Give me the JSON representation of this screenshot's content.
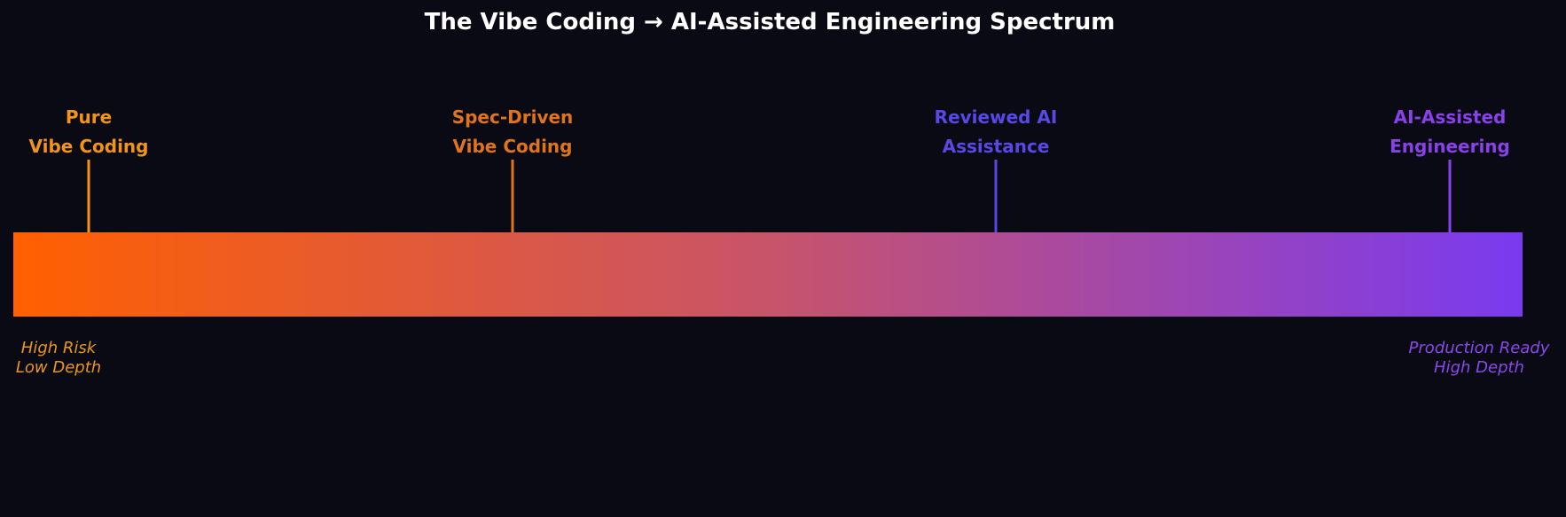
{
  "title": "The Vibe Coding → AI-Assisted Engineering Spectrum",
  "markers": [
    {
      "line1": "Pure",
      "line2": "Vibe Coding",
      "color": "#f29418"
    },
    {
      "line1": "Spec-Driven",
      "line2": "Vibe Coding",
      "color": "#e0741c"
    },
    {
      "line1": "Reviewed AI",
      "line2": "Assistance",
      "color": "#5a48e6"
    },
    {
      "line1": "AI-Assisted",
      "line2": "Engineering",
      "color": "#8a40ea"
    }
  ],
  "left_note": {
    "line1": "High Risk",
    "line2": "Low Depth",
    "color": "#e9961e"
  },
  "right_note": {
    "line1": "Production Ready",
    "line2": "High Depth",
    "color": "#8a48ea"
  },
  "gradient": {
    "start": "#ff6000",
    "mid": "#c8546a",
    "end": "#7a3af0"
  }
}
